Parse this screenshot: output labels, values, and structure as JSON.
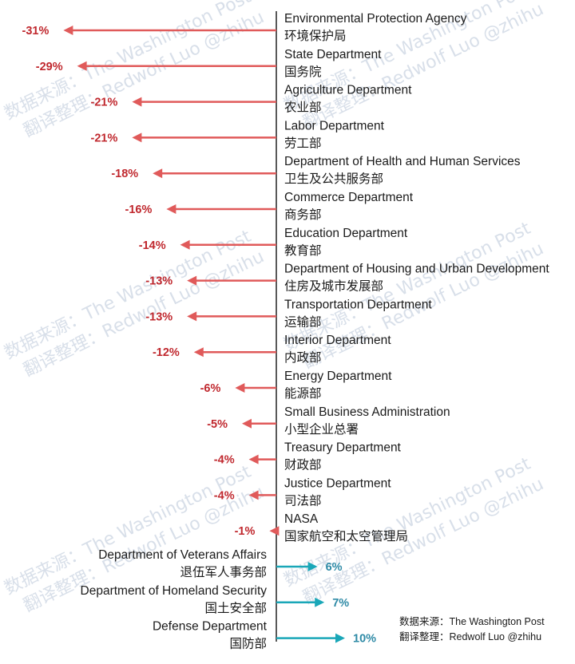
{
  "colors": {
    "negative": "#e05a5a",
    "negative_text": "#c0282e",
    "positive": "#1aa7b8",
    "positive_text": "#2e8aa6",
    "axis": "#222222",
    "watermark": "#b9c6d8"
  },
  "chart_data": {
    "type": "bar",
    "orientation": "horizontal-arrows",
    "unit": "%",
    "categories": [
      {
        "en": "Environmental Protection Agency",
        "cn": "环境保护局",
        "value": -31,
        "label": "-31%"
      },
      {
        "en": "State Department",
        "cn": "国务院",
        "value": -29,
        "label": "-29%"
      },
      {
        "en": "Agriculture Department",
        "cn": "农业部",
        "value": -21,
        "label": "-21%"
      },
      {
        "en": "Labor Department",
        "cn": "劳工部",
        "value": -21,
        "label": "-21%"
      },
      {
        "en": "Department of Health and Human Services",
        "cn": "卫生及公共服务部",
        "value": -18,
        "label": "-18%"
      },
      {
        "en": "Commerce Department",
        "cn": "商务部",
        "value": -16,
        "label": "-16%"
      },
      {
        "en": "Education Department",
        "cn": "教育部",
        "value": -14,
        "label": "-14%"
      },
      {
        "en": "Department of Housing and Urban Development",
        "cn": "住房及城市发展部",
        "value": -13,
        "label": "-13%"
      },
      {
        "en": "Transportation Department",
        "cn": "运输部",
        "value": -13,
        "label": "-13%"
      },
      {
        "en": "Interior Department",
        "cn": "内政部",
        "value": -12,
        "label": "-12%"
      },
      {
        "en": "Energy Department",
        "cn": "能源部",
        "value": -6,
        "label": "-6%"
      },
      {
        "en": "Small Business Administration",
        "cn": "小型企业总署",
        "value": -5,
        "label": "-5%"
      },
      {
        "en": "Treasury Department",
        "cn": "财政部",
        "value": -4,
        "label": "-4%"
      },
      {
        "en": "Justice Department",
        "cn": "司法部",
        "value": -4,
        "label": "-4%"
      },
      {
        "en": "NASA",
        "cn": "国家航空和太空管理局",
        "value": -1,
        "label": "-1%"
      },
      {
        "en": "Department of Veterans Affairs",
        "cn": "退伍军人事务部",
        "value": 6,
        "label": "6%"
      },
      {
        "en": "Department of Homeland Security",
        "cn": "国土安全部",
        "value": 7,
        "label": "7%"
      },
      {
        "en": "Defense Department",
        "cn": "国防部",
        "value": 10,
        "label": "10%"
      }
    ],
    "grid": false,
    "legend": "none"
  },
  "watermark": {
    "line1": "数据来源：The Washington Post",
    "line2": "翻译整理：Redwolf Luo @zhihu"
  },
  "source_note": {
    "line1": "数据来源：The Washington Post",
    "line2": "翻译整理：Redwolf Luo @zhihu"
  }
}
